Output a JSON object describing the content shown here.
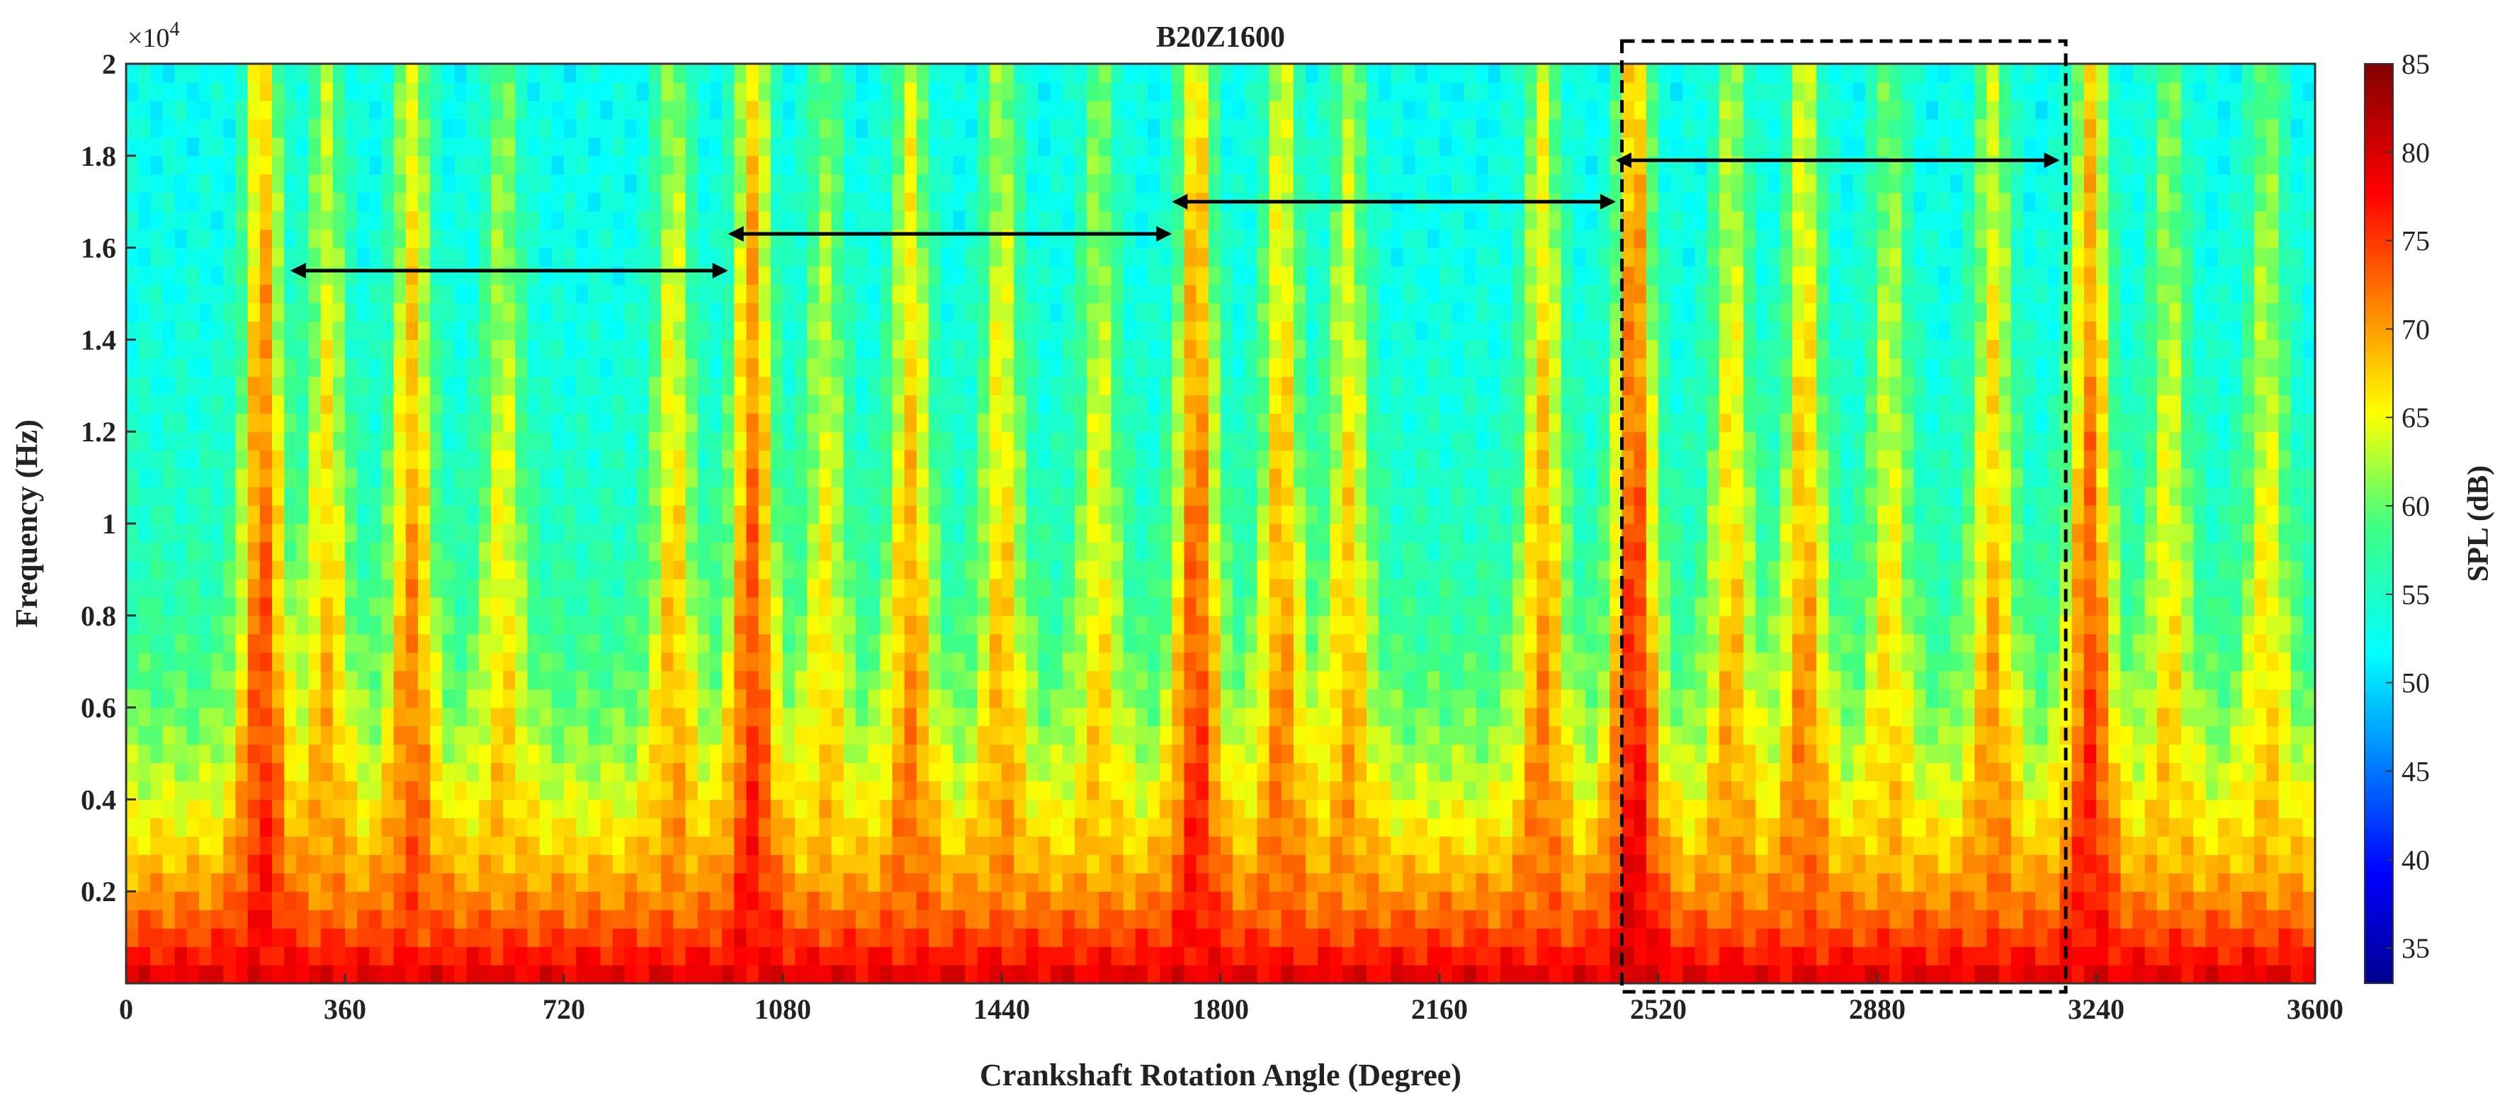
{
  "chart_data": {
    "type": "heatmap",
    "title": "B20Z1600",
    "xlabel": "Crankshaft Rotation Angle (Degree)",
    "ylabel": "Frequency (Hz)",
    "y_multiplier": "×10",
    "y_multiplier_exp": "4",
    "colorbar_label": "SPL (dB)",
    "xlim": [
      0,
      3600
    ],
    "ylim": [
      0,
      20000
    ],
    "x_ticks": [
      0,
      360,
      720,
      1080,
      1440,
      1800,
      2160,
      2520,
      2880,
      3240,
      3600
    ],
    "x_tick_labels": [
      "0",
      "360",
      "720",
      "1080",
      "1440",
      "1800",
      "2160",
      "2520",
      "2880",
      "3240",
      "3600"
    ],
    "y_ticks": [
      2000,
      4000,
      6000,
      8000,
      10000,
      12000,
      14000,
      16000,
      18000,
      20000
    ],
    "y_tick_labels": [
      "0.2",
      "0.4",
      "0.6",
      "0.8",
      "1",
      "1.2",
      "1.4",
      "1.6",
      "1.8",
      "2"
    ],
    "colorbar_range": [
      33,
      85
    ],
    "colorbar_ticks": [
      35,
      40,
      45,
      50,
      55,
      60,
      65,
      70,
      75,
      80,
      85
    ],
    "colorbar_tick_labels": [
      "35",
      "40",
      "45",
      "50",
      "55",
      "60",
      "65",
      "70",
      "75",
      "80",
      "85"
    ],
    "colormap": "jet",
    "spl_background_low_freq_db": 80,
    "spl_background_high_freq_db": 52,
    "combustion_streaks": [
      {
        "angle": 225,
        "db": 78
      },
      {
        "angle": 330,
        "db": 72
      },
      {
        "angle": 470,
        "db": 75
      },
      {
        "angle": 620,
        "db": 70
      },
      {
        "angle": 900,
        "db": 72
      },
      {
        "angle": 1030,
        "db": 78
      },
      {
        "angle": 1150,
        "db": 70
      },
      {
        "angle": 1290,
        "db": 74
      },
      {
        "angle": 1440,
        "db": 72
      },
      {
        "angle": 1600,
        "db": 70
      },
      {
        "angle": 1760,
        "db": 78
      },
      {
        "angle": 1900,
        "db": 74
      },
      {
        "angle": 2010,
        "db": 72
      },
      {
        "angle": 2330,
        "db": 74
      },
      {
        "angle": 2480,
        "db": 80
      },
      {
        "angle": 2640,
        "db": 72
      },
      {
        "angle": 2760,
        "db": 74
      },
      {
        "angle": 2900,
        "db": 70
      },
      {
        "angle": 3070,
        "db": 73
      },
      {
        "angle": 3230,
        "db": 78
      },
      {
        "angle": 3360,
        "db": 70
      },
      {
        "angle": 3520,
        "db": 70
      }
    ],
    "cycle_arrows": [
      {
        "x_start": 270,
        "x_end": 990,
        "y": 15500
      },
      {
        "x_start": 990,
        "x_end": 1720,
        "y": 16300
      },
      {
        "x_start": 1720,
        "x_end": 2450,
        "y": 17000
      },
      {
        "x_start": 2450,
        "x_end": 3180,
        "y": 17900
      }
    ],
    "highlight_box": {
      "x_start": 2460,
      "x_end": 3190,
      "y_top_overshoot": true,
      "style": "dashed"
    },
    "grid": false
  }
}
